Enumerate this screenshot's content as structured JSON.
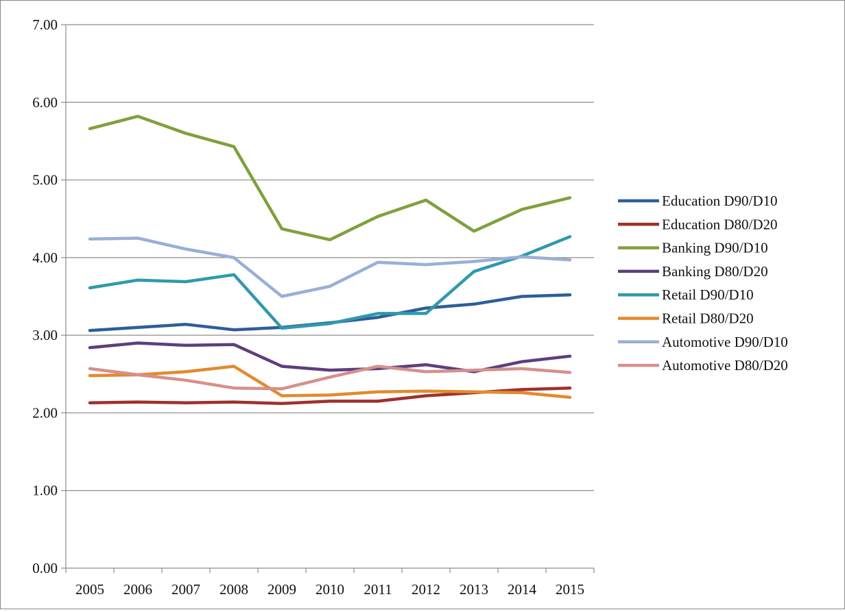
{
  "chart_data": {
    "type": "line",
    "title": "",
    "xlabel": "",
    "ylabel": "",
    "categories": [
      "2005",
      "2006",
      "2007",
      "2008",
      "2009",
      "2010",
      "2011",
      "2012",
      "2013",
      "2014",
      "2015"
    ],
    "ylim": [
      0,
      7
    ],
    "yticks": [
      "0.00",
      "1.00",
      "2.00",
      "3.00",
      "4.00",
      "5.00",
      "6.00",
      "7.00"
    ],
    "grid": true,
    "legend_position": "right",
    "series": [
      {
        "name": "Education D90/D10",
        "color": "#2e5e9a",
        "values": [
          3.06,
          3.1,
          3.14,
          3.07,
          3.1,
          3.16,
          3.23,
          3.35,
          3.4,
          3.5,
          3.52
        ]
      },
      {
        "name": "Education D80/D20",
        "color": "#a0302b",
        "values": [
          2.13,
          2.14,
          2.13,
          2.14,
          2.12,
          2.15,
          2.15,
          2.22,
          2.26,
          2.3,
          2.32
        ]
      },
      {
        "name": "Banking D90/D10",
        "color": "#7ea13c",
        "values": [
          5.66,
          5.82,
          5.6,
          5.43,
          4.37,
          4.23,
          4.53,
          4.74,
          4.34,
          4.62,
          4.77
        ]
      },
      {
        "name": "Banking D80/D20",
        "color": "#5e3d7e",
        "values": [
          2.84,
          2.9,
          2.87,
          2.88,
          2.6,
          2.55,
          2.57,
          2.62,
          2.53,
          2.66,
          2.73
        ]
      },
      {
        "name": "Retail D90/D10",
        "color": "#2f99ad",
        "values": [
          3.61,
          3.71,
          3.69,
          3.78,
          3.09,
          3.15,
          3.28,
          3.28,
          3.82,
          4.02,
          4.27
        ]
      },
      {
        "name": "Retail D80/D20",
        "color": "#e38a2e",
        "values": [
          2.48,
          2.49,
          2.53,
          2.6,
          2.22,
          2.23,
          2.27,
          2.28,
          2.27,
          2.26,
          2.2
        ]
      },
      {
        "name": "Automotive D90/D10",
        "color": "#98afd8",
        "values": [
          4.24,
          4.25,
          4.11,
          4.0,
          3.5,
          3.63,
          3.94,
          3.91,
          3.95,
          4.01,
          3.97
        ]
      },
      {
        "name": "Automotive D80/D20",
        "color": "#d5908c",
        "values": [
          2.57,
          2.49,
          2.42,
          2.32,
          2.31,
          2.46,
          2.6,
          2.53,
          2.55,
          2.57,
          2.52
        ]
      }
    ]
  }
}
